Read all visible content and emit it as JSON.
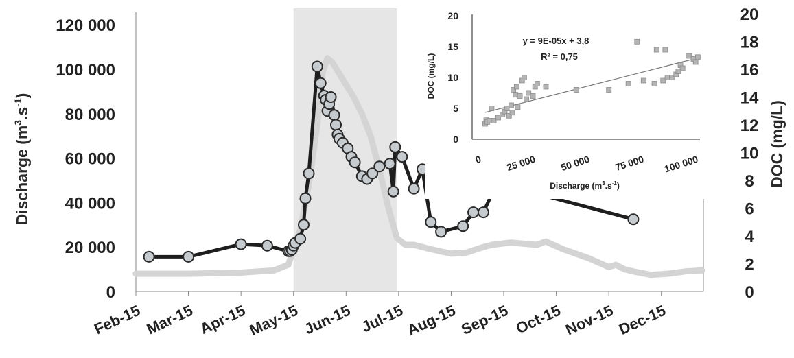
{
  "chart_data": [
    {
      "type": "line",
      "title": "",
      "xlabel": "",
      "ylabel": "Discharge (m3.s-1)",
      "ylabel_parts": {
        "main": "Discharge (m",
        "sup1": "3",
        "mid": ".s",
        "sup2": "-1",
        "end": ")"
      },
      "y2label": "DOC (mg/L)",
      "xticks": [
        "Feb-15",
        "Mar-15",
        "Apr-15",
        "May-15",
        "Jun-15",
        "Jul-15",
        "Aug-15",
        "Sep-15",
        "Oct-15",
        "Nov-15",
        "Dec-15"
      ],
      "yticks": [
        "0",
        "20 000",
        "40 000",
        "60 000",
        "80 000",
        "100 000",
        "120 000"
      ],
      "y2ticks": [
        "0",
        "2",
        "4",
        "6",
        "8",
        "10",
        "12",
        "14",
        "16",
        "18",
        "20"
      ],
      "ylim": [
        0,
        125000
      ],
      "y2lim": [
        0,
        20
      ],
      "xlim_month_index": [
        0,
        10.8
      ],
      "shaded_period": {
        "start": "2015-05-01",
        "end": "2015-06-30",
        "color": "#e6e6e6"
      },
      "series": [
        {
          "axis": "left",
          "color": "#d4d4d4",
          "x": [
            "2015-02-01",
            "2015-03-01",
            "2015-04-01",
            "2015-04-20",
            "2015-04-28",
            "2015-05-01",
            "2015-05-05",
            "2015-05-10",
            "2015-05-15",
            "2015-05-18",
            "2015-05-21",
            "2015-05-24",
            "2015-05-28",
            "2015-06-01",
            "2015-06-05",
            "2015-06-10",
            "2015-06-15",
            "2015-06-20",
            "2015-06-25",
            "2015-06-30",
            "2015-07-05",
            "2015-07-10",
            "2015-07-20",
            "2015-08-01",
            "2015-08-10",
            "2015-08-20",
            "2015-08-25",
            "2015-09-05",
            "2015-09-20",
            "2015-09-25",
            "2015-10-05",
            "2015-10-20",
            "2015-11-01",
            "2015-11-05",
            "2015-11-10",
            "2015-11-15",
            "2015-11-25",
            "2015-12-05",
            "2015-12-15",
            "2015-12-25"
          ],
          "y": [
            8000,
            8000,
            8500,
            9500,
            12000,
            19000,
            28000,
            48000,
            75000,
            98000,
            105000,
            103000,
            98000,
            93000,
            88000,
            80000,
            70000,
            55000,
            38000,
            24000,
            21000,
            21000,
            19000,
            17000,
            17500,
            20000,
            21000,
            22000,
            21000,
            22500,
            19000,
            15000,
            11000,
            12000,
            10000,
            9000,
            7500,
            8000,
            9000,
            9500
          ]
        },
        {
          "axis": "right",
          "color": "#1e1e1e",
          "marker_fill": "#c6cbcf",
          "x": [
            "2015-02-08",
            "2015-03-01",
            "2015-04-01",
            "2015-04-16",
            "2015-04-28",
            "2015-04-29",
            "2015-04-30",
            "2015-05-01",
            "2015-05-02",
            "2015-05-05",
            "2015-05-07",
            "2015-05-08",
            "2015-05-10",
            "2015-05-15",
            "2015-05-17",
            "2015-05-19",
            "2015-05-20",
            "2015-05-21",
            "2015-05-22",
            "2015-05-23",
            "2015-05-25",
            "2015-05-26",
            "2015-05-27",
            "2015-05-28",
            "2015-05-30",
            "2015-06-02",
            "2015-06-04",
            "2015-06-06",
            "2015-06-10",
            "2015-06-13",
            "2015-06-16",
            "2015-06-20",
            "2015-06-26",
            "2015-06-28",
            "2015-06-29",
            "2015-07-03",
            "2015-07-10",
            "2015-07-15",
            "2015-07-20",
            "2015-07-26",
            "2015-08-08",
            "2015-08-14",
            "2015-08-20",
            "2015-08-28",
            "2015-11-15"
          ],
          "y": [
            2.5,
            2.5,
            3.4,
            3.3,
            2.9,
            2.9,
            3.0,
            3.3,
            3.5,
            3.8,
            4.8,
            6.7,
            8.5,
            16.2,
            15.0,
            14.1,
            13.8,
            13.0,
            13.5,
            14.0,
            12.7,
            12.0,
            11.3,
            11.0,
            10.7,
            10.3,
            9.7,
            9.3,
            8.3,
            8.1,
            8.5,
            9.0,
            9.2,
            7.2,
            10.4,
            9.7,
            7.4,
            8.8,
            5.0,
            4.3,
            4.7,
            5.7,
            5.7,
            7.8,
            5.2
          ]
        }
      ]
    },
    {
      "type": "scatter",
      "title": "",
      "equation": "y = 9E-05x + 3,8",
      "r2": "R² = 0,75",
      "xlabel": "Discharge (m3.s-1)",
      "xlabel_parts": {
        "main": "Discharge (m",
        "sup1": "3",
        "mid": ".s",
        "sup2": "-1",
        "end": ")"
      },
      "ylabel": "DOC (mg/L)",
      "xticks": [
        "0",
        "25 000",
        "50 000",
        "75 000",
        "100 000"
      ],
      "yticks": [
        "0",
        "5",
        "10",
        "15",
        "20"
      ],
      "xlim": [
        0,
        105000
      ],
      "ylim": [
        0,
        20
      ],
      "trendline": {
        "slope": 9e-05,
        "intercept": 3.8,
        "x_range": [
          6000,
          103000
        ]
      },
      "marker_color": "#b4b4b4",
      "points": [
        [
          6000,
          2.5
        ],
        [
          6500,
          3.2
        ],
        [
          7000,
          2.8
        ],
        [
          8000,
          3.0
        ],
        [
          9000,
          5.0
        ],
        [
          10000,
          3.0
        ],
        [
          12000,
          3.5
        ],
        [
          14000,
          4.0
        ],
        [
          15000,
          4.5
        ],
        [
          16000,
          5.0
        ],
        [
          17000,
          3.8
        ],
        [
          18000,
          5.5
        ],
        [
          18500,
          4.3
        ],
        [
          19000,
          8.0
        ],
        [
          20000,
          7.2
        ],
        [
          20500,
          8.5
        ],
        [
          21000,
          5.2
        ],
        [
          22000,
          7.0
        ],
        [
          23000,
          9.5
        ],
        [
          24000,
          10.0
        ],
        [
          25000,
          6.5
        ],
        [
          26000,
          7.5
        ],
        [
          28000,
          7.0
        ],
        [
          29000,
          8.5
        ],
        [
          30000,
          9.0
        ],
        [
          34000,
          8.5
        ],
        [
          48000,
          8.0
        ],
        [
          63000,
          8.0
        ],
        [
          72000,
          9.0
        ],
        [
          76000,
          15.8
        ],
        [
          79000,
          9.5
        ],
        [
          84000,
          9.0
        ],
        [
          85000,
          14.5
        ],
        [
          88000,
          9.5
        ],
        [
          89000,
          14.5
        ],
        [
          90000,
          10.0
        ],
        [
          92000,
          10.0
        ],
        [
          94000,
          10.5
        ],
        [
          95000,
          11.0
        ],
        [
          96000,
          12.0
        ],
        [
          97000,
          11.5
        ],
        [
          100000,
          13.5
        ],
        [
          102000,
          13.0
        ],
        [
          103000,
          12.5
        ],
        [
          104000,
          13.3
        ]
      ]
    }
  ]
}
